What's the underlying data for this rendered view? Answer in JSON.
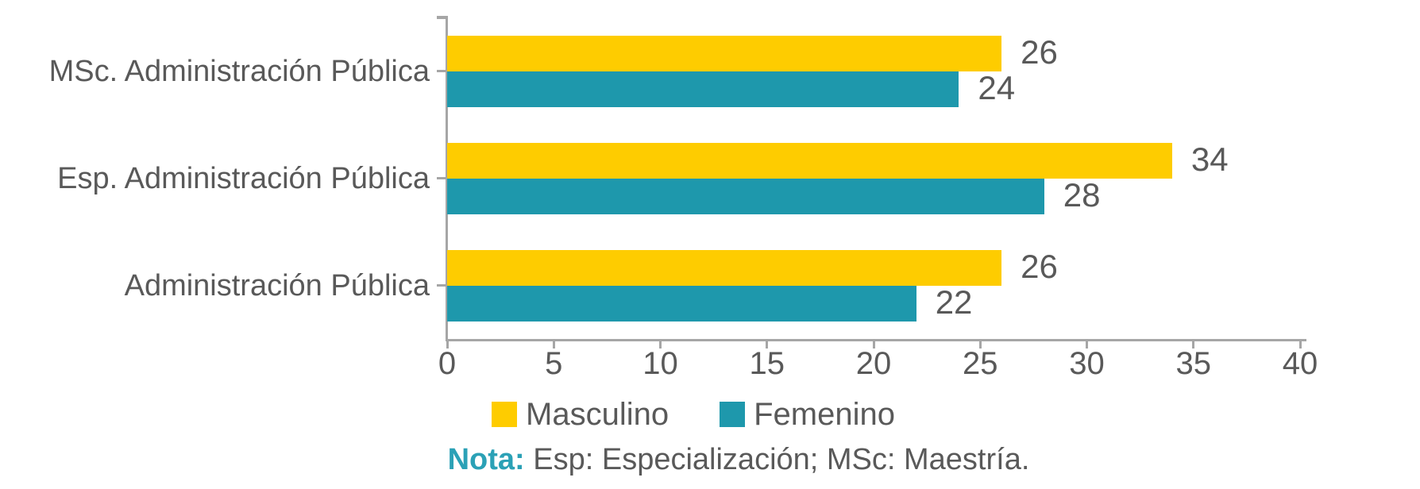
{
  "chart_data": {
    "type": "bar",
    "orientation": "horizontal",
    "title": "",
    "categories": [
      "MSc. Administración Pública",
      "Esp. Administración Pública",
      "Administración Pública"
    ],
    "series": [
      {
        "name": "Masculino",
        "color": "#FECC00",
        "values": [
          26,
          34,
          26
        ]
      },
      {
        "name": "Femenino",
        "color": "#1E98AC",
        "values": [
          24,
          28,
          22
        ]
      }
    ],
    "xlabel": "",
    "ylabel": "",
    "xlim": [
      0,
      40
    ],
    "x_ticks": [
      0,
      5,
      10,
      15,
      20,
      25,
      30,
      35,
      40
    ],
    "grid": false,
    "data_labels": true,
    "legend_position": "bottom"
  },
  "legend": {
    "items": [
      {
        "label": "Masculino",
        "color": "#FECC00"
      },
      {
        "label": "Femenino",
        "color": "#1E98AC"
      }
    ]
  },
  "note": {
    "label": "Nota:",
    "text": "Esp: Especialización; MSc: Maestría."
  },
  "colors": {
    "axis": "#A6A6A6",
    "text": "#595959",
    "note_label": "#2BA1B6",
    "masculino": "#FECC00",
    "femenino": "#1E98AC"
  }
}
